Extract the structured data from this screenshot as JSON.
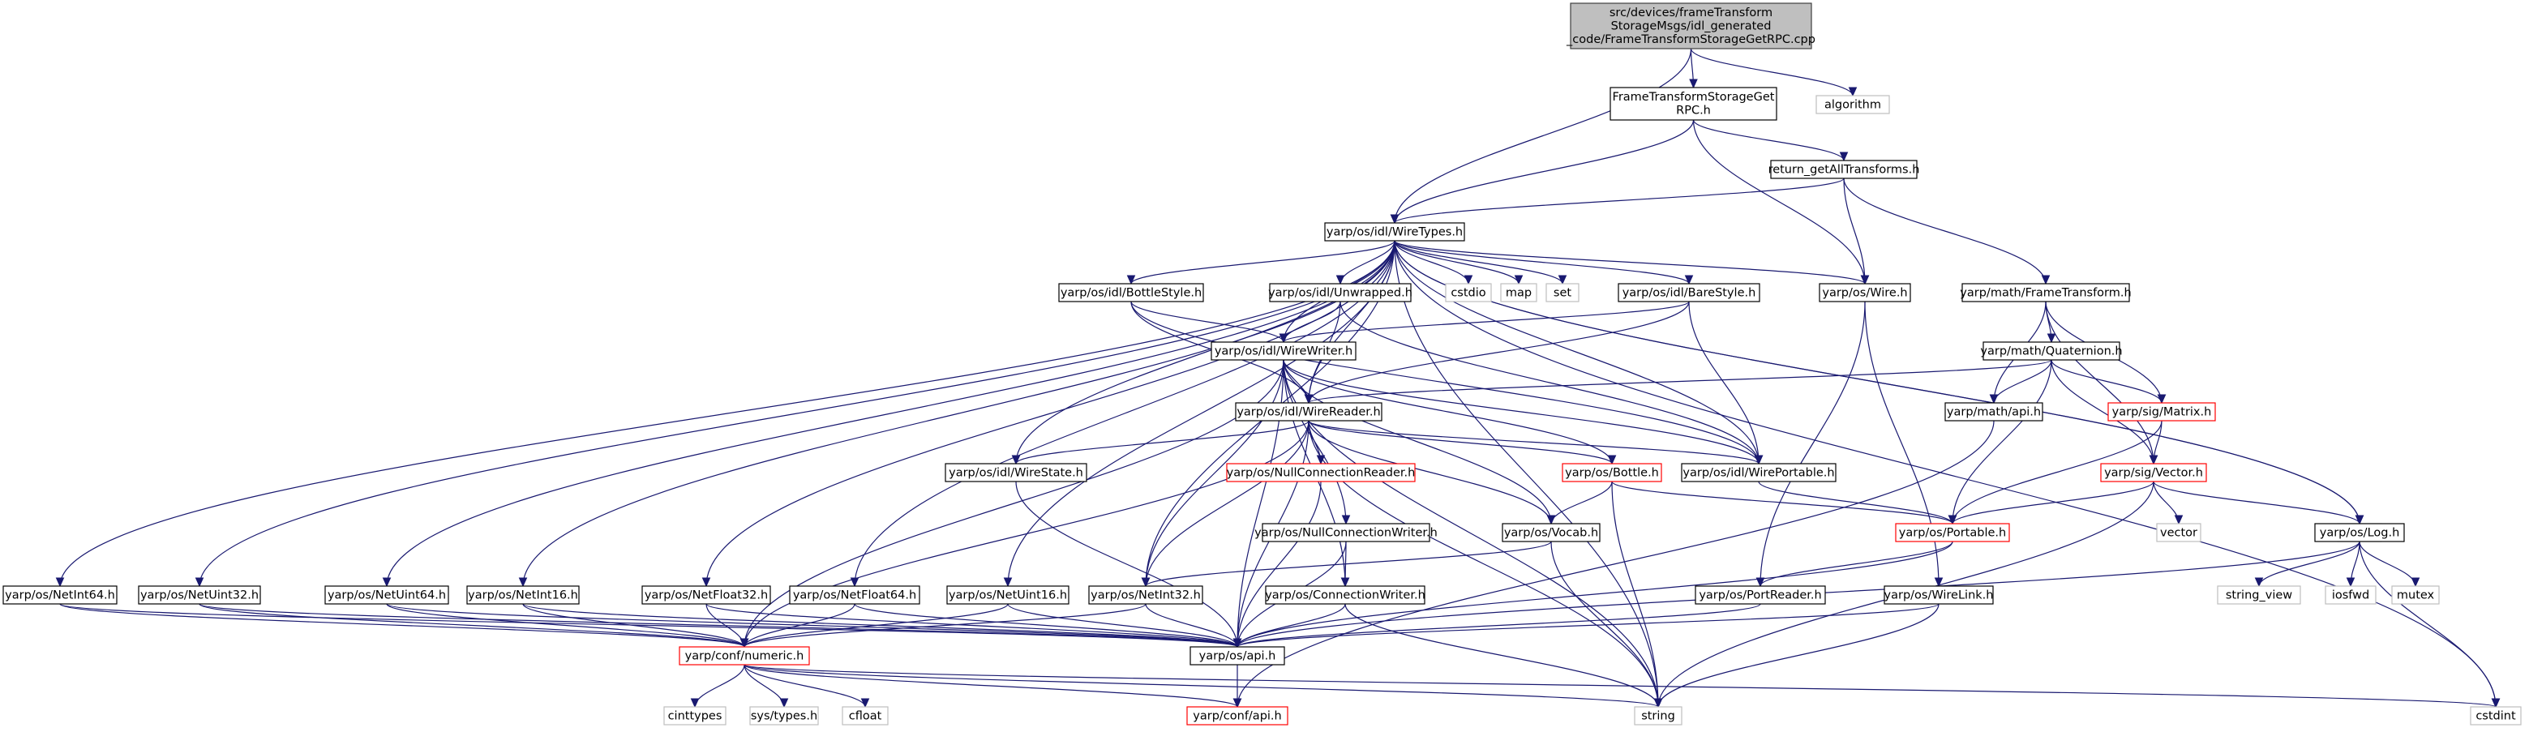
{
  "nodes": [
    {
      "id": "root",
      "lines": [
        "src/devices/frameTransform",
        "StorageMsgs/idl_generated",
        "_code/FrameTransformStorageGetRPC.cpp"
      ],
      "style": "root"
    },
    {
      "id": "ftsget",
      "lines": [
        "FrameTransformStorageGet",
        "RPC.h"
      ],
      "style": "normal"
    },
    {
      "id": "algorithm",
      "lines": [
        "algorithm"
      ],
      "style": "gray"
    },
    {
      "id": "retall",
      "lines": [
        "return_getAllTransforms.h"
      ],
      "style": "normal"
    },
    {
      "id": "wiretypes",
      "lines": [
        "yarp/os/idl/WireTypes.h"
      ],
      "style": "normal"
    },
    {
      "id": "bottlestyle",
      "lines": [
        "yarp/os/idl/BottleStyle.h"
      ],
      "style": "normal"
    },
    {
      "id": "unwrapped",
      "lines": [
        "yarp/os/idl/Unwrapped.h"
      ],
      "style": "normal"
    },
    {
      "id": "cstdio",
      "lines": [
        "cstdio"
      ],
      "style": "gray"
    },
    {
      "id": "map",
      "lines": [
        "map"
      ],
      "style": "gray"
    },
    {
      "id": "set",
      "lines": [
        "set"
      ],
      "style": "gray"
    },
    {
      "id": "barestyle",
      "lines": [
        "yarp/os/idl/BareStyle.h"
      ],
      "style": "normal"
    },
    {
      "id": "wire",
      "lines": [
        "yarp/os/Wire.h"
      ],
      "style": "normal"
    },
    {
      "id": "frametransform",
      "lines": [
        "yarp/math/FrameTransform.h"
      ],
      "style": "normal"
    },
    {
      "id": "wirewriter",
      "lines": [
        "yarp/os/idl/WireWriter.h"
      ],
      "style": "normal"
    },
    {
      "id": "quaternion",
      "lines": [
        "yarp/math/Quaternion.h"
      ],
      "style": "normal"
    },
    {
      "id": "wirereader",
      "lines": [
        "yarp/os/idl/WireReader.h"
      ],
      "style": "normal"
    },
    {
      "id": "mathapi",
      "lines": [
        "yarp/math/api.h"
      ],
      "style": "normal"
    },
    {
      "id": "matrix",
      "lines": [
        "yarp/sig/Matrix.h"
      ],
      "style": "red"
    },
    {
      "id": "wirestate",
      "lines": [
        "yarp/os/idl/WireState.h"
      ],
      "style": "normal"
    },
    {
      "id": "nullreader",
      "lines": [
        "yarp/os/NullConnectionReader.h"
      ],
      "style": "red"
    },
    {
      "id": "bottle",
      "lines": [
        "yarp/os/Bottle.h"
      ],
      "style": "red"
    },
    {
      "id": "wireportable",
      "lines": [
        "yarp/os/idl/WirePortable.h"
      ],
      "style": "normal"
    },
    {
      "id": "vectorh",
      "lines": [
        "yarp/sig/Vector.h"
      ],
      "style": "red"
    },
    {
      "id": "nullwriter",
      "lines": [
        "yarp/os/NullConnectionWriter.h"
      ],
      "style": "normal"
    },
    {
      "id": "vocab",
      "lines": [
        "yarp/os/Vocab.h"
      ],
      "style": "normal"
    },
    {
      "id": "portable",
      "lines": [
        "yarp/os/Portable.h"
      ],
      "style": "red"
    },
    {
      "id": "vector",
      "lines": [
        "vector"
      ],
      "style": "gray"
    },
    {
      "id": "vector2",
      "lines": [
        "vector"
      ],
      "style": "gray"
    },
    {
      "id": "log",
      "lines": [
        "yarp/os/Log.h"
      ],
      "style": "normal"
    },
    {
      "id": "netint64",
      "lines": [
        "yarp/os/NetInt64.h"
      ],
      "style": "normal"
    },
    {
      "id": "netuint32",
      "lines": [
        "yarp/os/NetUint32.h"
      ],
      "style": "normal"
    },
    {
      "id": "netuint64",
      "lines": [
        "yarp/os/NetUint64.h"
      ],
      "style": "normal"
    },
    {
      "id": "netint16",
      "lines": [
        "yarp/os/NetInt16.h"
      ],
      "style": "normal"
    },
    {
      "id": "netfloat32",
      "lines": [
        "yarp/os/NetFloat32.h"
      ],
      "style": "normal"
    },
    {
      "id": "netfloat64",
      "lines": [
        "yarp/os/NetFloat64.h"
      ],
      "style": "normal"
    },
    {
      "id": "netuint16",
      "lines": [
        "yarp/os/NetUint16.h"
      ],
      "style": "normal"
    },
    {
      "id": "netint32",
      "lines": [
        "yarp/os/NetInt32.h"
      ],
      "style": "normal"
    },
    {
      "id": "connwriter",
      "lines": [
        "yarp/os/ConnectionWriter.h"
      ],
      "style": "normal"
    },
    {
      "id": "portreader",
      "lines": [
        "yarp/os/PortReader.h"
      ],
      "style": "normal"
    },
    {
      "id": "wirelink",
      "lines": [
        "yarp/os/WireLink.h"
      ],
      "style": "normal"
    },
    {
      "id": "stringview",
      "lines": [
        "string_view"
      ],
      "style": "gray"
    },
    {
      "id": "iosfwd",
      "lines": [
        "iosfwd"
      ],
      "style": "gray"
    },
    {
      "id": "mutex",
      "lines": [
        "mutex"
      ],
      "style": "gray"
    },
    {
      "id": "numeric",
      "lines": [
        "yarp/conf/numeric.h"
      ],
      "style": "red"
    },
    {
      "id": "osapi",
      "lines": [
        "yarp/os/api.h"
      ],
      "style": "normal"
    },
    {
      "id": "cinttypes",
      "lines": [
        "cinttypes"
      ],
      "style": "gray"
    },
    {
      "id": "systypes",
      "lines": [
        "sys/types.h"
      ],
      "style": "gray"
    },
    {
      "id": "cfloat",
      "lines": [
        "cfloat"
      ],
      "style": "gray"
    },
    {
      "id": "confapi",
      "lines": [
        "yarp/conf/api.h"
      ],
      "style": "red"
    },
    {
      "id": "string",
      "lines": [
        "string"
      ],
      "style": "gray"
    },
    {
      "id": "cstdint",
      "lines": [
        "cstdint"
      ],
      "style": "gray"
    }
  ],
  "edges": [
    [
      "root",
      "ftsget"
    ],
    [
      "root",
      "algorithm"
    ],
    [
      "root",
      "wiretypes"
    ],
    [
      "ftsget",
      "retall"
    ],
    [
      "ftsget",
      "wiretypes"
    ],
    [
      "ftsget",
      "wire"
    ],
    [
      "retall",
      "wiretypes"
    ],
    [
      "retall",
      "wire"
    ],
    [
      "retall",
      "frametransform"
    ],
    [
      "wiretypes",
      "bottlestyle"
    ],
    [
      "wiretypes",
      "unwrapped"
    ],
    [
      "wiretypes",
      "cstdio"
    ],
    [
      "wiretypes",
      "map"
    ],
    [
      "wiretypes",
      "set"
    ],
    [
      "wiretypes",
      "barestyle"
    ],
    [
      "wiretypes",
      "wire"
    ],
    [
      "wiretypes",
      "wirewriter"
    ],
    [
      "wiretypes",
      "wirereader"
    ],
    [
      "wiretypes",
      "wirestate"
    ],
    [
      "wiretypes",
      "wireportable"
    ],
    [
      "wiretypes",
      "vector2"
    ],
    [
      "wiretypes",
      "log"
    ],
    [
      "wiretypes",
      "netint64"
    ],
    [
      "wiretypes",
      "netuint32"
    ],
    [
      "wiretypes",
      "netuint64"
    ],
    [
      "wiretypes",
      "netint16"
    ],
    [
      "wiretypes",
      "netfloat32"
    ],
    [
      "wiretypes",
      "netfloat64"
    ],
    [
      "wiretypes",
      "netuint16"
    ],
    [
      "wiretypes",
      "netint32"
    ],
    [
      "wiretypes",
      "string"
    ],
    [
      "wiretypes",
      "cstdint"
    ],
    [
      "bottlestyle",
      "wirewriter"
    ],
    [
      "bottlestyle",
      "wirereader"
    ],
    [
      "bottlestyle",
      "wireportable"
    ],
    [
      "unwrapped",
      "wirewriter"
    ],
    [
      "unwrapped",
      "wirereader"
    ],
    [
      "unwrapped",
      "wireportable"
    ],
    [
      "barestyle",
      "wirewriter"
    ],
    [
      "barestyle",
      "wirereader"
    ],
    [
      "barestyle",
      "wireportable"
    ],
    [
      "wire",
      "portreader"
    ],
    [
      "wire",
      "wirelink"
    ],
    [
      "frametransform",
      "quaternion"
    ],
    [
      "frametransform",
      "mathapi"
    ],
    [
      "frametransform",
      "matrix"
    ],
    [
      "frametransform",
      "vectorh"
    ],
    [
      "wirewriter",
      "wirereader"
    ],
    [
      "wirewriter",
      "wireportable"
    ],
    [
      "wirewriter",
      "bottle"
    ],
    [
      "wirewriter",
      "vocab"
    ],
    [
      "wirewriter",
      "netint32"
    ],
    [
      "wirewriter",
      "numeric"
    ],
    [
      "wirewriter",
      "osapi"
    ],
    [
      "wirewriter",
      "connwriter"
    ],
    [
      "wirewriter",
      "nullwriter"
    ],
    [
      "wirewriter",
      "string"
    ],
    [
      "quaternion",
      "wirereader"
    ],
    [
      "quaternion",
      "mathapi"
    ],
    [
      "quaternion",
      "matrix"
    ],
    [
      "quaternion",
      "vectorh"
    ],
    [
      "quaternion",
      "portable"
    ],
    [
      "wirereader",
      "wirestate"
    ],
    [
      "wirereader",
      "nullreader"
    ],
    [
      "wirereader",
      "bottle"
    ],
    [
      "wirereader",
      "wireportable"
    ],
    [
      "wirereader",
      "vocab"
    ],
    [
      "wirereader",
      "netint32"
    ],
    [
      "wirereader",
      "numeric"
    ],
    [
      "wirereader",
      "osapi"
    ],
    [
      "wirereader",
      "string"
    ],
    [
      "mathapi",
      "confapi"
    ],
    [
      "matrix",
      "vectorh"
    ],
    [
      "matrix",
      "portable"
    ],
    [
      "wirestate",
      "osapi"
    ],
    [
      "nullreader",
      "osapi"
    ],
    [
      "bottle",
      "vocab"
    ],
    [
      "bottle",
      "portable"
    ],
    [
      "bottle",
      "string"
    ],
    [
      "wireportable",
      "portable"
    ],
    [
      "vectorh",
      "portable"
    ],
    [
      "vectorh",
      "vector"
    ],
    [
      "vectorh",
      "log"
    ],
    [
      "vectorh",
      "string"
    ],
    [
      "nullwriter",
      "connwriter"
    ],
    [
      "nullwriter",
      "osapi"
    ],
    [
      "vocab",
      "netint32"
    ],
    [
      "vocab",
      "string"
    ],
    [
      "portable",
      "portreader"
    ],
    [
      "portable",
      "osapi"
    ],
    [
      "log",
      "stringview"
    ],
    [
      "log",
      "iosfwd"
    ],
    [
      "log",
      "mutex"
    ],
    [
      "log",
      "cstdint"
    ],
    [
      "log",
      "osapi"
    ],
    [
      "netint64",
      "numeric"
    ],
    [
      "netint64",
      "osapi"
    ],
    [
      "netuint32",
      "numeric"
    ],
    [
      "netuint32",
      "osapi"
    ],
    [
      "netuint64",
      "numeric"
    ],
    [
      "netuint64",
      "osapi"
    ],
    [
      "netint16",
      "numeric"
    ],
    [
      "netint16",
      "osapi"
    ],
    [
      "netfloat32",
      "numeric"
    ],
    [
      "netfloat32",
      "osapi"
    ],
    [
      "netfloat64",
      "numeric"
    ],
    [
      "netfloat64",
      "osapi"
    ],
    [
      "netuint16",
      "numeric"
    ],
    [
      "netuint16",
      "osapi"
    ],
    [
      "netint32",
      "numeric"
    ],
    [
      "netint32",
      "osapi"
    ],
    [
      "connwriter",
      "osapi"
    ],
    [
      "connwriter",
      "string"
    ],
    [
      "portreader",
      "osapi"
    ],
    [
      "wirelink",
      "osapi"
    ],
    [
      "wirelink",
      "string"
    ],
    [
      "numeric",
      "cinttypes"
    ],
    [
      "numeric",
      "systypes"
    ],
    [
      "numeric",
      "cfloat"
    ],
    [
      "numeric",
      "confapi"
    ],
    [
      "numeric",
      "string"
    ],
    [
      "numeric",
      "cstdint"
    ],
    [
      "osapi",
      "confapi"
    ]
  ]
}
